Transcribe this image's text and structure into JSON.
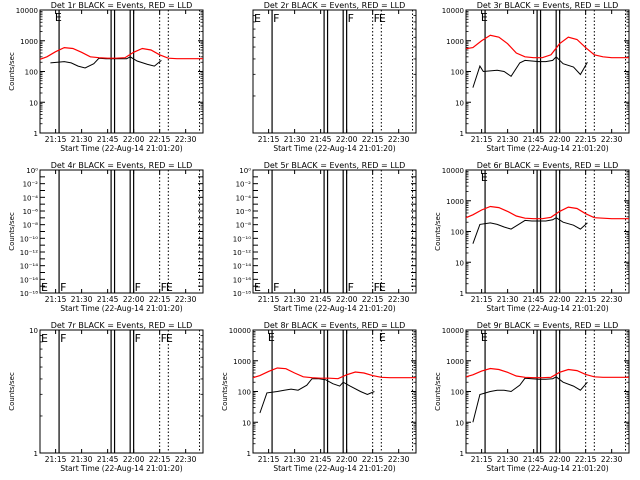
{
  "figure": {
    "background": "#ffffff",
    "ink_color": "#000000",
    "lld_color": "#ff0000",
    "x_tick_labels": [
      "21:15",
      "21:30",
      "21:45",
      "22:00",
      "22:15",
      "22:30"
    ],
    "xlabel": "Start Time (22-Aug-14 21:01:20)",
    "flag_letter": "E",
    "flag_letter_alt": "F"
  },
  "chart_data": [
    {
      "type": "line",
      "title": "Det 1r BLACK = Events, RED = LLD",
      "ylabel": "Counts/sec",
      "xlabel": "Start Time (22-Aug-14 21:01:20)",
      "x_unit": "time (HH:MM)",
      "x_range": [
        "21:06",
        "22:40"
      ],
      "y_scale": "log",
      "ylim": [
        1,
        10000
      ],
      "y_tick_labels": [
        "1",
        "10",
        "100",
        "1000",
        "10000"
      ],
      "x_ticks": [
        "21:15",
        "21:30",
        "21:45",
        "22:00",
        "22:15",
        "22:30"
      ],
      "has_data": true,
      "legend": "none (title text)",
      "series": [
        {
          "color": "black",
          "x": [
            "21:12",
            "21:20",
            "21:24",
            "21:28",
            "21:32",
            "21:37",
            "21:40",
            "21:44",
            "21:48",
            "21:52",
            "21:56",
            "21:58",
            "22:02",
            "22:08",
            "22:12",
            "22:16"
          ],
          "y": [
            190,
            210,
            190,
            150,
            130,
            180,
            270,
            260,
            260,
            260,
            260,
            300,
            220,
            170,
            150,
            230
          ]
        },
        {
          "color": "red",
          "x": [
            "21:06",
            "21:10",
            "21:15",
            "21:20",
            "21:25",
            "21:30",
            "21:35",
            "21:40",
            "21:45",
            "21:50",
            "21:55",
            "22:00",
            "22:05",
            "22:10",
            "22:15",
            "22:20",
            "22:25",
            "22:30",
            "22:35",
            "22:40"
          ],
          "y": [
            250,
            300,
            440,
            600,
            560,
            420,
            300,
            280,
            270,
            270,
            280,
            420,
            560,
            500,
            350,
            270,
            260,
            260,
            260,
            260
          ]
        }
      ],
      "vertical_lines": {
        "solid": [
          "21:17",
          "21:47",
          "21:49",
          "21:58",
          "22:00"
        ],
        "dotted": [
          "22:15",
          "22:20",
          "22:38"
        ]
      },
      "flags": [
        {
          "time": "21:14",
          "letter": "E"
        }
      ]
    },
    {
      "type": "line",
      "title": "Det 2r BLACK = Events, RED = LLD",
      "ylabel": "",
      "xlabel": "Start Time (22-Aug-14 21:01:20)",
      "x_unit": "time (HH:MM)",
      "x_range": [
        "21:06",
        "22:40"
      ],
      "y_scale": "log",
      "ylim": [
        1,
        10
      ],
      "y_tick_labels": [],
      "x_ticks": [
        "21:15",
        "21:30",
        "21:45",
        "22:00",
        "22:15",
        "22:30"
      ],
      "has_data": false,
      "legend": "none (title text)",
      "series": [],
      "vertical_lines": {
        "solid": [
          "21:17",
          "21:47",
          "21:49",
          "21:58",
          "22:00"
        ],
        "dotted": [
          "22:15",
          "22:20",
          "22:38"
        ]
      },
      "flags": [
        {
          "time": "21:06",
          "letter": "E"
        },
        {
          "time": "21:17",
          "letter": "F"
        },
        {
          "time": "22:00",
          "letter": "F"
        },
        {
          "time": "22:15",
          "letter": "F"
        },
        {
          "time": "22:18",
          "letter": "E"
        }
      ]
    },
    {
      "type": "line",
      "title": "Det 3r BLACK = Events, RED = LLD",
      "ylabel": "",
      "xlabel": "Start Time (22-Aug-14 21:01:20)",
      "x_unit": "time (HH:MM)",
      "x_range": [
        "21:06",
        "22:40"
      ],
      "y_scale": "log",
      "ylim": [
        1,
        10000
      ],
      "y_tick_labels": [
        "1",
        "10",
        "100",
        "1000",
        "10000"
      ],
      "x_ticks": [
        "21:15",
        "21:30",
        "21:45",
        "22:00",
        "22:15",
        "22:30"
      ],
      "has_data": true,
      "legend": "none (title text)",
      "series": [
        {
          "color": "black",
          "x": [
            "21:10",
            "21:14",
            "21:16",
            "21:24",
            "21:28",
            "21:32",
            "21:37",
            "21:40",
            "21:44",
            "21:48",
            "21:52",
            "21:56",
            "21:58",
            "22:02",
            "22:08",
            "22:12",
            "22:16"
          ],
          "y": [
            30,
            150,
            100,
            110,
            100,
            70,
            190,
            230,
            220,
            210,
            210,
            230,
            300,
            180,
            140,
            80,
            200
          ]
        },
        {
          "color": "red",
          "x": [
            "21:06",
            "21:10",
            "21:15",
            "21:20",
            "21:25",
            "21:30",
            "21:35",
            "21:40",
            "21:45",
            "21:50",
            "21:55",
            "22:00",
            "22:05",
            "22:10",
            "22:15",
            "22:20",
            "22:25",
            "22:30",
            "22:35",
            "22:40"
          ],
          "y": [
            550,
            600,
            1000,
            1500,
            1300,
            800,
            400,
            300,
            280,
            280,
            350,
            800,
            1300,
            1100,
            600,
            350,
            300,
            280,
            280,
            280
          ]
        }
      ],
      "vertical_lines": {
        "solid": [
          "21:17",
          "21:47",
          "21:49",
          "21:58",
          "22:00"
        ],
        "dotted": [
          "22:15",
          "22:20",
          "22:38"
        ]
      },
      "flags": [
        {
          "time": "21:14",
          "letter": "E"
        }
      ]
    },
    {
      "type": "line",
      "title": "Det 4r BLACK = Events, RED = LLD",
      "ylabel": "Counts/sec",
      "xlabel": "Start Time (22-Aug-14 21:01:20)",
      "x_unit": "time (HH:MM)",
      "x_range": [
        "21:06",
        "22:40"
      ],
      "y_scale": "log",
      "ylim": [
        1e-18,
        1
      ],
      "y_tick_labels": [
        "10⁰",
        "10⁻²",
        "10⁻⁴",
        "10⁻⁶",
        "10⁻⁸",
        "10⁻¹⁰",
        "10⁻¹²",
        "10⁻¹⁴",
        "10⁻¹⁶",
        "10⁻¹⁸"
      ],
      "x_ticks": [
        "21:15",
        "21:30",
        "21:45",
        "22:00",
        "22:15",
        "22:30"
      ],
      "has_data": false,
      "legend": "none (title text)",
      "series": [],
      "vertical_lines": {
        "solid": [
          "21:17",
          "21:47",
          "21:49",
          "21:58",
          "22:00"
        ],
        "dotted": [
          "22:15",
          "22:20",
          "22:38"
        ]
      },
      "flags": [
        {
          "time": "21:06",
          "letter": "E"
        },
        {
          "time": "21:17",
          "letter": "F"
        },
        {
          "time": "22:00",
          "letter": "F"
        },
        {
          "time": "22:15",
          "letter": "F"
        },
        {
          "time": "22:18",
          "letter": "E"
        }
      ]
    },
    {
      "type": "line",
      "title": "Det 5r BLACK = Events, RED = LLD",
      "ylabel": "",
      "xlabel": "Start Time (22-Aug-14 21:01:20)",
      "x_unit": "time (HH:MM)",
      "x_range": [
        "21:06",
        "22:40"
      ],
      "y_scale": "log",
      "ylim": [
        1e-18,
        1
      ],
      "y_tick_labels": [
        "10⁰",
        "10⁻²",
        "10⁻⁴",
        "10⁻⁶",
        "10⁻⁸",
        "10⁻¹⁰",
        "10⁻¹²",
        "10⁻¹⁴",
        "10⁻¹⁶",
        "10⁻¹⁸"
      ],
      "x_ticks": [
        "21:15",
        "21:30",
        "21:45",
        "22:00",
        "22:15",
        "22:30"
      ],
      "has_data": false,
      "legend": "none (title text)",
      "series": [],
      "vertical_lines": {
        "solid": [
          "21:17",
          "21:47",
          "21:49",
          "21:58",
          "22:00"
        ],
        "dotted": [
          "22:15",
          "22:20",
          "22:38"
        ]
      },
      "flags": [
        {
          "time": "21:06",
          "letter": "E"
        },
        {
          "time": "21:17",
          "letter": "F"
        },
        {
          "time": "22:00",
          "letter": "F"
        },
        {
          "time": "22:15",
          "letter": "F"
        },
        {
          "time": "22:18",
          "letter": "E"
        }
      ]
    },
    {
      "type": "line",
      "title": "Det 6r BLACK = Events, RED = LLD",
      "ylabel": "Counts/sec",
      "xlabel": "Start Time (22-Aug-14 21:01:20)",
      "x_unit": "time (HH:MM)",
      "x_range": [
        "21:06",
        "22:40"
      ],
      "y_scale": "log",
      "ylim": [
        1,
        10000
      ],
      "y_tick_labels": [
        "1",
        "10",
        "100",
        "1000",
        "10000"
      ],
      "x_ticks": [
        "21:15",
        "21:30",
        "21:45",
        "22:00",
        "22:15",
        "22:30"
      ],
      "has_data": true,
      "legend": "none (title text)",
      "series": [
        {
          "color": "black",
          "x": [
            "21:10",
            "21:14",
            "21:20",
            "21:24",
            "21:28",
            "21:32",
            "21:37",
            "21:40",
            "21:44",
            "21:48",
            "21:52",
            "21:56",
            "21:58",
            "22:02",
            "22:08",
            "22:12",
            "22:16"
          ],
          "y": [
            40,
            170,
            190,
            170,
            140,
            120,
            180,
            230,
            220,
            220,
            220,
            240,
            280,
            200,
            160,
            120,
            190
          ]
        },
        {
          "color": "red",
          "x": [
            "21:06",
            "21:10",
            "21:15",
            "21:20",
            "21:25",
            "21:30",
            "21:35",
            "21:40",
            "21:45",
            "21:50",
            "21:55",
            "22:00",
            "22:05",
            "22:10",
            "22:15",
            "22:20",
            "22:25",
            "22:30",
            "22:35",
            "22:40"
          ],
          "y": [
            280,
            350,
            500,
            650,
            600,
            450,
            320,
            270,
            260,
            260,
            290,
            450,
            620,
            560,
            380,
            280,
            270,
            260,
            260,
            260
          ]
        }
      ],
      "vertical_lines": {
        "solid": [
          "21:17",
          "21:47",
          "21:49",
          "21:58",
          "22:00"
        ],
        "dotted": [
          "22:15",
          "22:20",
          "22:38"
        ]
      },
      "flags": [
        {
          "time": "21:14",
          "letter": "E"
        }
      ]
    },
    {
      "type": "line",
      "title": "Det 7r BLACK = Events, RED = LLD",
      "ylabel": "Counts/sec",
      "xlabel": "Start Time (22-Aug-14 21:01:20)",
      "x_unit": "time (HH:MM)",
      "x_range": [
        "21:06",
        "22:40"
      ],
      "y_scale": "log",
      "ylim": [
        1,
        10
      ],
      "y_tick_labels": [
        "1",
        "10"
      ],
      "x_ticks": [
        "21:15",
        "21:30",
        "21:45",
        "22:00",
        "22:15",
        "22:30"
      ],
      "has_data": false,
      "legend": "none (title text)",
      "series": [],
      "vertical_lines": {
        "solid": [
          "21:17",
          "21:47",
          "21:49",
          "21:58",
          "22:00"
        ],
        "dotted": [
          "22:15",
          "22:20",
          "22:38"
        ]
      },
      "flags": [
        {
          "time": "21:06",
          "letter": "E"
        },
        {
          "time": "21:17",
          "letter": "F"
        },
        {
          "time": "22:00",
          "letter": "F"
        },
        {
          "time": "22:15",
          "letter": "F"
        },
        {
          "time": "22:18",
          "letter": "E"
        }
      ]
    },
    {
      "type": "line",
      "title": "Det 8r BLACK = Events, RED = LLD",
      "ylabel": "Counts/sec",
      "xlabel": "Start Time (22-Aug-14 21:01:20)",
      "x_unit": "time (HH:MM)",
      "x_range": [
        "21:06",
        "22:40"
      ],
      "y_scale": "log",
      "ylim": [
        1,
        10000
      ],
      "y_tick_labels": [
        "1",
        "10",
        "100",
        "1000",
        "10000"
      ],
      "x_ticks": [
        "21:15",
        "21:30",
        "21:45",
        "22:00",
        "22:15",
        "22:30"
      ],
      "has_data": true,
      "legend": "none (title text)",
      "series": [
        {
          "color": "black",
          "x": [
            "21:10",
            "21:14",
            "21:20",
            "21:24",
            "21:28",
            "21:32",
            "21:37",
            "21:40",
            "21:44",
            "21:48",
            "21:52",
            "21:56",
            "21:58",
            "22:02",
            "22:08",
            "22:12",
            "22:16"
          ],
          "y": [
            20,
            90,
            100,
            110,
            120,
            110,
            160,
            260,
            260,
            240,
            180,
            150,
            200,
            150,
            100,
            80,
            100
          ]
        },
        {
          "color": "red",
          "x": [
            "21:06",
            "21:10",
            "21:15",
            "21:20",
            "21:25",
            "21:30",
            "21:35",
            "21:40",
            "21:45",
            "21:50",
            "21:55",
            "22:00",
            "22:05",
            "22:10",
            "22:15",
            "22:20",
            "22:25",
            "22:30",
            "22:35",
            "22:40"
          ],
          "y": [
            280,
            330,
            450,
            580,
            550,
            400,
            300,
            280,
            270,
            270,
            260,
            350,
            430,
            400,
            330,
            290,
            280,
            280,
            280,
            280
          ]
        }
      ],
      "vertical_lines": {
        "solid": [
          "21:17",
          "21:47",
          "21:49",
          "21:58",
          "22:00"
        ],
        "dotted": [
          "22:15",
          "22:20",
          "22:38"
        ]
      },
      "flags": [
        {
          "time": "21:14",
          "letter": "E"
        },
        {
          "time": "22:18",
          "letter": "E"
        }
      ]
    },
    {
      "type": "line",
      "title": "Det 9r BLACK = Events, RED = LLD",
      "ylabel": "Counts/sec",
      "xlabel": "Start Time (22-Aug-14 21:01:20)",
      "x_unit": "time (HH:MM)",
      "x_range": [
        "21:06",
        "22:40"
      ],
      "y_scale": "log",
      "ylim": [
        1,
        10000
      ],
      "y_tick_labels": [
        "1",
        "10",
        "100",
        "1000",
        "10000"
      ],
      "x_ticks": [
        "21:15",
        "21:30",
        "21:45",
        "22:00",
        "22:15",
        "22:30"
      ],
      "has_data": true,
      "legend": "none (title text)",
      "series": [
        {
          "color": "black",
          "x": [
            "21:10",
            "21:14",
            "21:20",
            "21:24",
            "21:28",
            "21:32",
            "21:37",
            "21:40",
            "21:44",
            "21:48",
            "21:52",
            "21:56",
            "21:58",
            "22:02",
            "22:08",
            "22:12",
            "22:16"
          ],
          "y": [
            10,
            80,
            100,
            110,
            110,
            100,
            160,
            270,
            260,
            250,
            250,
            260,
            300,
            200,
            150,
            110,
            200
          ]
        },
        {
          "color": "red",
          "x": [
            "21:06",
            "21:10",
            "21:15",
            "21:20",
            "21:25",
            "21:30",
            "21:35",
            "21:40",
            "21:45",
            "21:50",
            "21:55",
            "22:00",
            "22:05",
            "22:10",
            "22:15",
            "22:20",
            "22:25",
            "22:30",
            "22:35",
            "22:40"
          ],
          "y": [
            300,
            350,
            460,
            560,
            520,
            420,
            320,
            290,
            280,
            280,
            290,
            420,
            520,
            480,
            360,
            300,
            290,
            290,
            290,
            290
          ]
        }
      ],
      "vertical_lines": {
        "solid": [
          "21:17",
          "21:47",
          "21:49",
          "21:58",
          "22:00"
        ],
        "dotted": [
          "22:15",
          "22:20",
          "22:38"
        ]
      },
      "flags": [
        {
          "time": "21:14",
          "letter": "E"
        }
      ]
    }
  ]
}
